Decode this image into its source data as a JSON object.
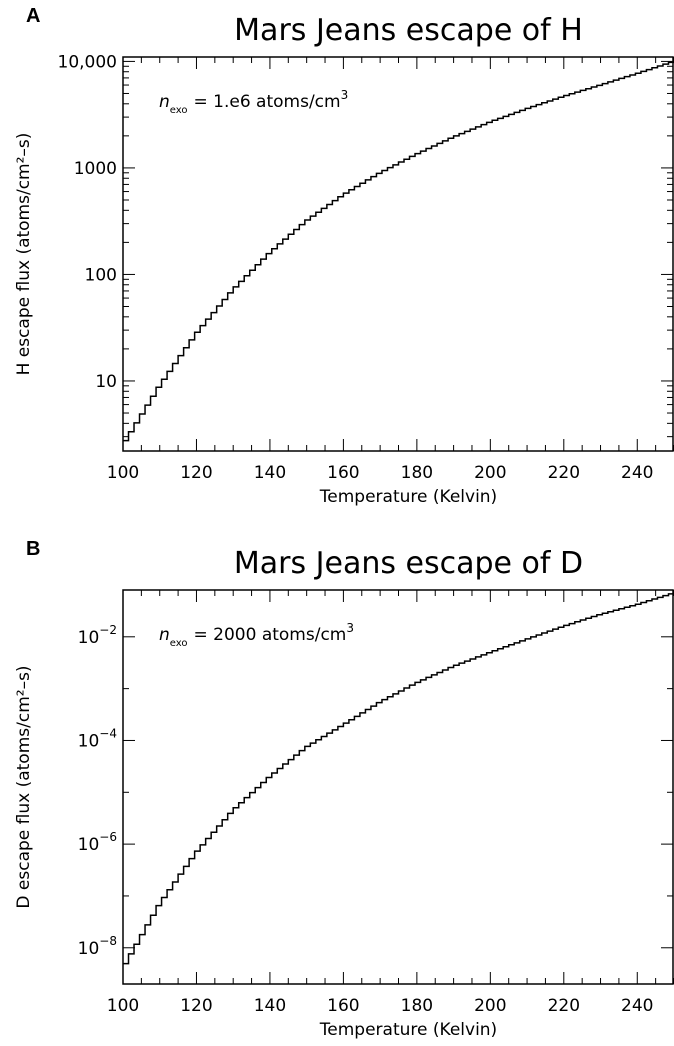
{
  "chart_data": [
    {
      "type": "line",
      "panel_label": "A",
      "title": "Mars Jeans escape of H",
      "xlabel": "Temperature (Kelvin)",
      "ylabel": "H escape flux (atoms/cm²–s)",
      "annotation": {
        "var": "n",
        "sub": "exo",
        "text": "= 1.e6 atoms/cm",
        "sup": "3"
      },
      "x_scale": "linear",
      "y_scale": "log",
      "xlim": [
        100,
        250
      ],
      "ylim": [
        2.2,
        11000
      ],
      "x_ticks": [
        100,
        120,
        140,
        160,
        180,
        200,
        220,
        240
      ],
      "x_tick_labels": [
        "100",
        "120",
        "140",
        "160",
        "180",
        "200",
        "220",
        "240"
      ],
      "y_ticks": [
        10,
        100,
        1000,
        10000
      ],
      "y_tick_labels": [
        {
          "text": "10"
        },
        {
          "text": "100"
        },
        {
          "text": "1000"
        },
        {
          "text": "10,000"
        }
      ],
      "series": [
        {
          "style": "step",
          "x": [
            100,
            110,
            120,
            130,
            140,
            150,
            160,
            170,
            180,
            190,
            200,
            210,
            220,
            230,
            240,
            250
          ],
          "y": [
            2.5,
            9,
            28,
            72,
            160,
            320,
            560,
            900,
            1350,
            1950,
            2700,
            3600,
            4700,
            6000,
            7700,
            10000
          ]
        }
      ]
    },
    {
      "type": "line",
      "panel_label": "B",
      "title": "Mars Jeans escape of D",
      "xlabel": "Temperature (Kelvin)",
      "ylabel": "D escape flux (atoms/cm²–s)",
      "annotation": {
        "var": "n",
        "sub": "exo",
        "text": "= 2000 atoms/cm",
        "sup": "3"
      },
      "x_scale": "linear",
      "y_scale": "log",
      "xlim": [
        100,
        250
      ],
      "ylim": [
        2e-09,
        0.08
      ],
      "x_ticks": [
        100,
        120,
        140,
        160,
        180,
        200,
        220,
        240
      ],
      "x_tick_labels": [
        "100",
        "120",
        "140",
        "160",
        "180",
        "200",
        "220",
        "240"
      ],
      "y_ticks": [
        1e-08,
        1e-06,
        0.0001,
        0.01
      ],
      "y_tick_labels": [
        {
          "base": "10",
          "exp": "−8"
        },
        {
          "base": "10",
          "exp": "−6"
        },
        {
          "base": "10",
          "exp": "−4"
        },
        {
          "base": "10",
          "exp": "−2"
        }
      ],
      "series": [
        {
          "style": "step",
          "x": [
            100,
            110,
            120,
            130,
            140,
            150,
            160,
            170,
            180,
            190,
            200,
            210,
            220,
            230,
            240,
            250
          ],
          "y": [
            4e-09,
            7e-08,
            7e-07,
            4.5e-06,
            2e-05,
            7.5e-05,
            0.0002,
            0.00055,
            0.0013,
            0.0027,
            0.005,
            0.009,
            0.016,
            0.027,
            0.042,
            0.07
          ]
        }
      ]
    }
  ]
}
